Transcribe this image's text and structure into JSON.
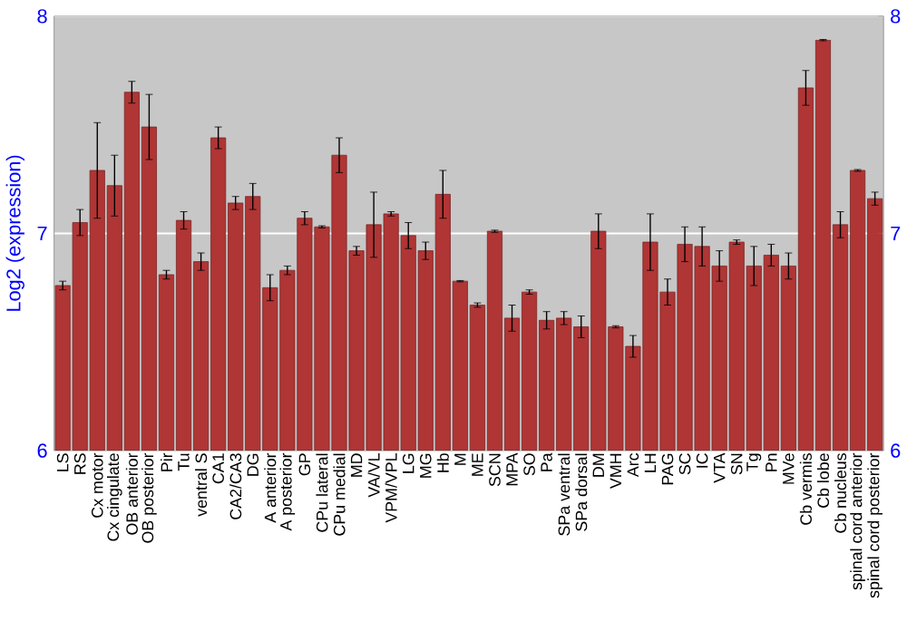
{
  "chart_data": {
    "type": "bar",
    "ylabel": "Log2 (expression)",
    "categories": [
      "LS",
      "RS",
      "Cx motor",
      "Cx cingulate",
      "OB anterior",
      "OB posterior",
      "Pir",
      "Tu",
      "ventral S",
      "CA1",
      "CA2/CA3",
      "DG",
      "A anterior",
      "A posterior",
      "GP",
      "CPu lateral",
      "CPu medial",
      "MD",
      "VA/VL",
      "VPM/VPL",
      "LG",
      "MG",
      "Hb",
      "M",
      "ME",
      "SCN",
      "MPA",
      "SO",
      "Pa",
      "SPa ventral",
      "SPa dorsal",
      "DM",
      "VMH",
      "Arc",
      "LH",
      "PAG",
      "SC",
      "IC",
      "VTA",
      "SN",
      "Tg",
      "Pn",
      "MVe",
      "Cb vermis",
      "Cb lobe",
      "Cb nucleus",
      "spinal cord anterior",
      "spinal cord posterior"
    ],
    "values": [
      6.76,
      7.05,
      7.29,
      7.22,
      7.65,
      7.49,
      6.81,
      7.06,
      6.87,
      7.44,
      7.14,
      7.17,
      6.75,
      6.83,
      7.07,
      7.03,
      7.36,
      6.92,
      7.04,
      7.09,
      6.99,
      6.92,
      7.18,
      6.78,
      6.67,
      7.01,
      6.61,
      6.73,
      6.6,
      6.61,
      6.57,
      7.01,
      6.57,
      6.48,
      6.96,
      6.73,
      6.95,
      6.94,
      6.85,
      6.96,
      6.85,
      6.9,
      6.85,
      7.67,
      7.89,
      7.04,
      7.29,
      7.16
    ],
    "errors": [
      0.02,
      0.06,
      0.22,
      0.14,
      0.05,
      0.15,
      0.02,
      0.04,
      0.04,
      0.05,
      0.03,
      0.06,
      0.06,
      0.02,
      0.03,
      0.005,
      0.08,
      0.02,
      0.15,
      0.01,
      0.06,
      0.04,
      0.11,
      0.003,
      0.01,
      0.005,
      0.06,
      0.01,
      0.04,
      0.03,
      0.05,
      0.08,
      0.005,
      0.05,
      0.13,
      0.06,
      0.08,
      0.09,
      0.07,
      0.01,
      0.09,
      0.05,
      0.06,
      0.08,
      0.003,
      0.06,
      0.004,
      0.03
    ],
    "color": "#b03535",
    "ylim": [
      6,
      8
    ],
    "yticks": [
      6,
      7,
      8
    ],
    "y2lim": [
      6,
      8
    ],
    "y2ticks": [
      6,
      7,
      8
    ],
    "grid": "y"
  }
}
